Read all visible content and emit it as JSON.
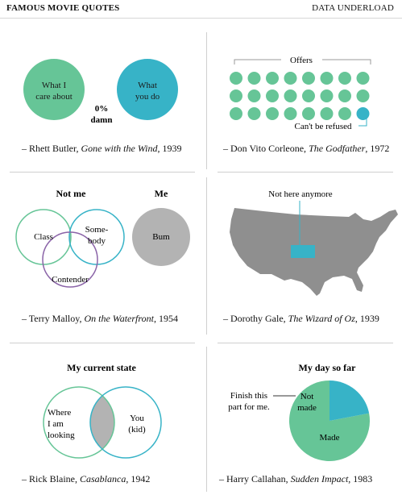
{
  "header": {
    "left": "FAMOUS MOVIE QUOTES",
    "right": "DATA UNDERLOAD"
  },
  "colors": {
    "green": "#66c597",
    "teal": "#37b3c7",
    "purple": "#8b64a8",
    "gray": "#b3b3b3",
    "map_gray": "#8f8f8f"
  },
  "panels": [
    {
      "speaker": "– Rhett Butler, ",
      "film": "Gone with the Wind",
      "year": ", 1939",
      "circle_a": "What I care about",
      "circle_b": "What you do",
      "overlap_value": "0%",
      "overlap_unit": "damn"
    },
    {
      "speaker": "– Don Vito Corleone, ",
      "film": "The Godfather",
      "year": ", 1972",
      "bracket_label": "Offers",
      "callout": "Can't be refused"
    },
    {
      "speaker": "– Terry Malloy, ",
      "film": "On the Waterfront",
      "year": ", 1954",
      "title_left": "Not me",
      "title_right": "Me",
      "circle_class": "Class",
      "circle_somebody": "Some-body",
      "circle_contender": "Contender",
      "circle_bum": "Bum"
    },
    {
      "speaker": "– Dorothy Gale, ",
      "film": "The Wizard of Oz",
      "year": ", 1939",
      "callout": "Not here anymore"
    },
    {
      "speaker": "– Rick Blaine, ",
      "film": "Casablanca",
      "year": ", 1942",
      "title": "My current state",
      "circle_left": "Where I am looking",
      "circle_right": "You (kid)"
    },
    {
      "speaker": "– Harry Callahan, ",
      "film": "Sudden Impact",
      "year": ", 1983",
      "title": "My day so far",
      "callout": "Finish this part for me."
    }
  ],
  "chart_data": [
    {
      "type": "venn",
      "sets": [
        "What I care about",
        "What you do"
      ],
      "overlap": "0% damn"
    },
    {
      "type": "dot-grid",
      "label": "Offers",
      "rows": 3,
      "cols": 8,
      "total": 24,
      "highlight": {
        "label": "Can't be refused",
        "count": 1
      }
    },
    {
      "type": "venn",
      "sets": [
        "Class",
        "Some-body",
        "Contender"
      ],
      "highlighted": "Not me",
      "separate": [
        "Bum"
      ],
      "separate_title": "Me"
    },
    {
      "type": "map",
      "region": "Kansas",
      "label": "Not here anymore"
    },
    {
      "type": "venn",
      "title": "My current state",
      "sets": [
        "Where I am looking",
        "You (kid)"
      ],
      "highlighted": "overlap"
    },
    {
      "type": "pie",
      "title": "My day so far",
      "slices": [
        {
          "label": "Made",
          "value": 0.78
        },
        {
          "label": "Not made",
          "value": 0.22
        }
      ]
    }
  ]
}
